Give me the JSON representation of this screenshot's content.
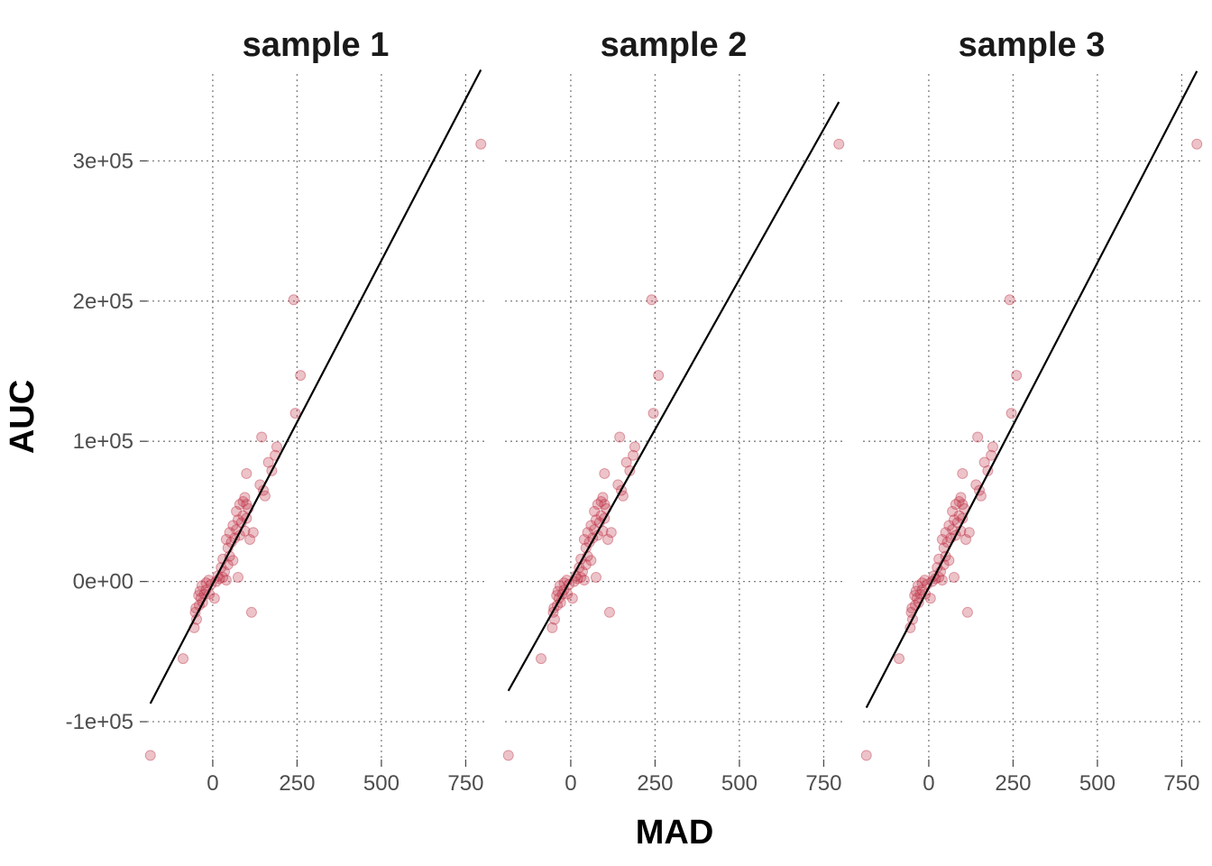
{
  "chart_data": {
    "type": "scatter",
    "xlabel": "MAD",
    "ylabel": "AUC",
    "xlim": [
      -195,
      805
    ],
    "ylim": [
      -127000,
      362000
    ],
    "x_ticks": [
      0,
      250,
      500,
      750
    ],
    "x_tick_labels": [
      "0",
      "250",
      "500",
      "750"
    ],
    "y_ticks": [
      -100000,
      0,
      100000,
      200000,
      300000
    ],
    "y_tick_labels": [
      "-1e+05",
      "0e+00",
      "1e+05",
      "2e+05",
      "3e+05"
    ],
    "grid": true,
    "point_color": "#c0394b",
    "line_color": "#000000",
    "points": [
      {
        "x": -185,
        "y": -124000
      },
      {
        "x": -88,
        "y": -55000
      },
      {
        "x": -55,
        "y": -33000
      },
      {
        "x": -48,
        "y": -27000
      },
      {
        "x": -52,
        "y": -22000
      },
      {
        "x": -50,
        "y": -19000
      },
      {
        "x": -40,
        "y": -17000
      },
      {
        "x": -30,
        "y": -15000
      },
      {
        "x": -35,
        "y": -12000
      },
      {
        "x": -42,
        "y": -10000
      },
      {
        "x": -25,
        "y": -9000
      },
      {
        "x": -38,
        "y": -7000
      },
      {
        "x": -20,
        "y": -6000
      },
      {
        "x": -10,
        "y": -9000
      },
      {
        "x": 5,
        "y": -12000
      },
      {
        "x": -32,
        "y": -3000
      },
      {
        "x": -20,
        "y": -1000
      },
      {
        "x": -5,
        "y": -2000
      },
      {
        "x": 10,
        "y": 0
      },
      {
        "x": -12,
        "y": 1000
      },
      {
        "x": 20,
        "y": 2000
      },
      {
        "x": 15,
        "y": 4000
      },
      {
        "x": 30,
        "y": 3000
      },
      {
        "x": 40,
        "y": 1000
      },
      {
        "x": 35,
        "y": 7000
      },
      {
        "x": 25,
        "y": 10000
      },
      {
        "x": 45,
        "y": 12000
      },
      {
        "x": 30,
        "y": 16000
      },
      {
        "x": 50,
        "y": 18000
      },
      {
        "x": 60,
        "y": 15000
      },
      {
        "x": 45,
        "y": 24000
      },
      {
        "x": 55,
        "y": 28000
      },
      {
        "x": 40,
        "y": 30000
      },
      {
        "x": 65,
        "y": 31000
      },
      {
        "x": 50,
        "y": 35000
      },
      {
        "x": 70,
        "y": 37000
      },
      {
        "x": 60,
        "y": 40000
      },
      {
        "x": 80,
        "y": 33000
      },
      {
        "x": 95,
        "y": 36000
      },
      {
        "x": 75,
        "y": 44000
      },
      {
        "x": 85,
        "y": 42000
      },
      {
        "x": 70,
        "y": 50000
      },
      {
        "x": 90,
        "y": 47000
      },
      {
        "x": 100,
        "y": 45000
      },
      {
        "x": 80,
        "y": 55000
      },
      {
        "x": 90,
        "y": 57000
      },
      {
        "x": 100,
        "y": 55000
      },
      {
        "x": 95,
        "y": 60000
      },
      {
        "x": 105,
        "y": 52000
      },
      {
        "x": 120,
        "y": 35000
      },
      {
        "x": 110,
        "y": 30000
      },
      {
        "x": 75,
        "y": 3000
      },
      {
        "x": 115,
        "y": -22000
      },
      {
        "x": 100,
        "y": 77000
      },
      {
        "x": 140,
        "y": 69000
      },
      {
        "x": 150,
        "y": 65000
      },
      {
        "x": 155,
        "y": 61000
      },
      {
        "x": 145,
        "y": 103000
      },
      {
        "x": 165,
        "y": 85000
      },
      {
        "x": 175,
        "y": 79000
      },
      {
        "x": 185,
        "y": 90000
      },
      {
        "x": 190,
        "y": 96000
      },
      {
        "x": 245,
        "y": 120000
      },
      {
        "x": 260,
        "y": 147000
      },
      {
        "x": 240,
        "y": 201000
      },
      {
        "x": 795,
        "y": 312000
      }
    ],
    "panels": [
      {
        "title": "sample 1",
        "fit_line": {
          "x1": -185,
          "y1": -87000,
          "x2": 795,
          "y2": 365000
        }
      },
      {
        "title": "sample 2",
        "fit_line": {
          "x1": -185,
          "y1": -78000,
          "x2": 795,
          "y2": 342000
        }
      },
      {
        "title": "sample 3",
        "fit_line": {
          "x1": -185,
          "y1": -90000,
          "x2": 795,
          "y2": 364000
        }
      }
    ]
  }
}
